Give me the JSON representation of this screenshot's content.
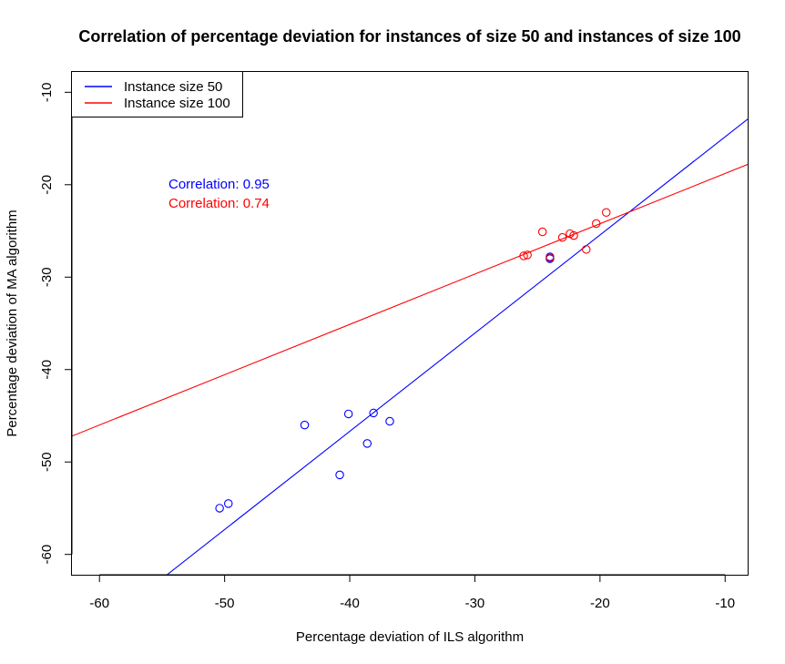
{
  "chart_data": {
    "type": "scatter",
    "title": "Correlation of percentage deviation for instances of size 50 and instances of size 100",
    "xlabel": "Percentage deviation of ILS algorithm",
    "ylabel": "Percentage deviation of MA algorithm",
    "xlim": [
      -62.2,
      -8.2
    ],
    "ylim": [
      -62.2,
      -7.8
    ],
    "xticks": [
      -60,
      -50,
      -40,
      -30,
      -20,
      -10
    ],
    "yticks": [
      -10,
      -20,
      -30,
      -40,
      -50,
      -60
    ],
    "grid": false,
    "legend_position": "top-left",
    "series": [
      {
        "name": "Instance size 50",
        "color": "#0000ff",
        "x": [
          -50.4,
          -49.7,
          -43.6,
          -40.8,
          -40.1,
          -38.6,
          -38.1,
          -36.8,
          -24.0,
          -24.0
        ],
        "y": [
          -55.0,
          -54.5,
          -46.0,
          -51.4,
          -44.8,
          -48.0,
          -44.7,
          -45.6,
          -27.8,
          -28.0
        ],
        "fit_line": [
          [
            -54.6,
            -62.2
          ],
          [
            -8.2,
            -12.9
          ]
        ],
        "correlation_label": "Correlation: 0.95"
      },
      {
        "name": "Instance size 100",
        "color": "#ff0000",
        "x": [
          -26.1,
          -25.8,
          -24.6,
          -24.0,
          -23.0,
          -22.4,
          -22.1,
          -21.1,
          -20.3,
          -19.5
        ],
        "y": [
          -27.7,
          -27.6,
          -25.1,
          -27.9,
          -25.7,
          -25.3,
          -25.5,
          -27.0,
          -24.2,
          -23.0
        ],
        "fit_line": [
          [
            -62.2,
            -47.2
          ],
          [
            -8.2,
            -17.8
          ]
        ],
        "correlation_label": "Correlation: 0.74"
      }
    ]
  }
}
